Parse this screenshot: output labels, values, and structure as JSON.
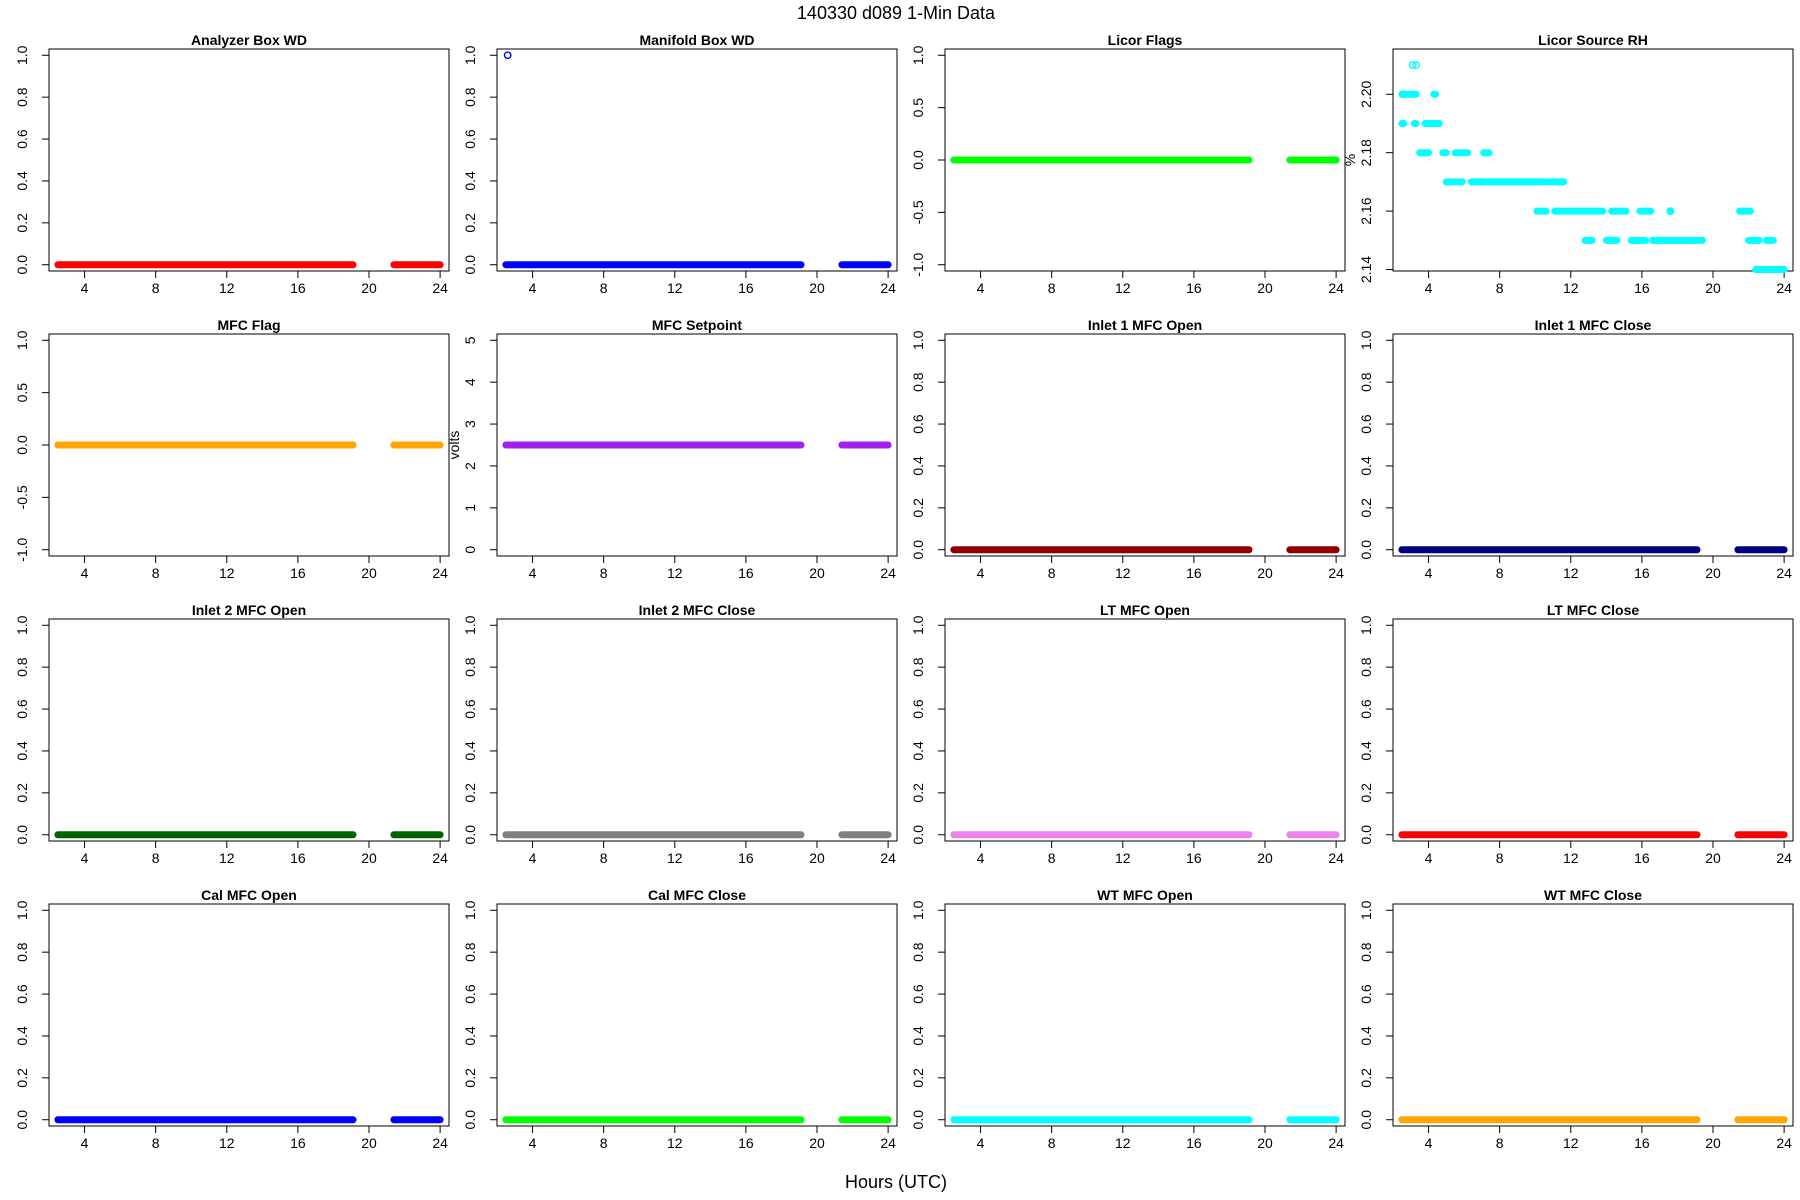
{
  "figure": {
    "title": "140330    d089    1-Min Data",
    "xlabel": "Hours (UTC)"
  },
  "chart_data": [
    {
      "type": "scatter",
      "title": "Analyzer Box WD",
      "ylabel": "",
      "color": "#ff0000",
      "xlim": [
        2,
        24.5
      ],
      "xticks": [
        4,
        8,
        12,
        16,
        20,
        24
      ],
      "ylim": [
        -0.03,
        1.03
      ],
      "yticks": [
        0.0,
        0.2,
        0.4,
        0.6,
        0.8,
        1.0
      ],
      "ytick_labels": [
        "0.0",
        "0.2",
        "0.4",
        "0.6",
        "0.8",
        "1.0"
      ],
      "segments": [
        {
          "x": [
            2.5,
            19.1
          ],
          "y": 0.0
        },
        {
          "x": [
            21.4,
            24.0
          ],
          "y": 0.0
        }
      ],
      "points": []
    },
    {
      "type": "scatter",
      "title": "Manifold Box WD",
      "ylabel": "",
      "color": "#0000ff",
      "xlim": [
        2,
        24.5
      ],
      "xticks": [
        4,
        8,
        12,
        16,
        20,
        24
      ],
      "ylim": [
        -0.03,
        1.03
      ],
      "yticks": [
        0.0,
        0.2,
        0.4,
        0.6,
        0.8,
        1.0
      ],
      "ytick_labels": [
        "0.0",
        "0.2",
        "0.4",
        "0.6",
        "0.8",
        "1.0"
      ],
      "segments": [
        {
          "x": [
            2.5,
            19.1
          ],
          "y": 0.0
        },
        {
          "x": [
            21.4,
            24.0
          ],
          "y": 0.0
        }
      ],
      "points": [
        {
          "x": 2.6,
          "y": 1.0
        }
      ]
    },
    {
      "type": "scatter",
      "title": "Licor Flags",
      "ylabel": "",
      "color": "#00ff00",
      "xlim": [
        2,
        24.5
      ],
      "xticks": [
        4,
        8,
        12,
        16,
        20,
        24
      ],
      "ylim": [
        -1.06,
        1.06
      ],
      "yticks": [
        -1.0,
        -0.5,
        0.0,
        0.5,
        1.0
      ],
      "ytick_labels": [
        "-1.0",
        "-0.5",
        "0.0",
        "0.5",
        "1.0"
      ],
      "segments": [
        {
          "x": [
            2.5,
            19.1
          ],
          "y": 0.0
        },
        {
          "x": [
            21.4,
            24.0
          ],
          "y": 0.0
        }
      ],
      "points": []
    },
    {
      "type": "scatter",
      "title": "Licor Source RH",
      "ylabel": "%",
      "color": "#00ffff",
      "xlim": [
        2,
        24.5
      ],
      "xticks": [
        4,
        8,
        12,
        16,
        20,
        24
      ],
      "ylim": [
        2.1395,
        2.2155
      ],
      "yticks": [
        2.14,
        2.16,
        2.18,
        2.2
      ],
      "ytick_labels": [
        "2.14",
        "2.16",
        "2.18",
        "2.20"
      ],
      "segments": [
        {
          "x": [
            2.5,
            3.3
          ],
          "y": 2.2
        },
        {
          "x": [
            4.3,
            4.4
          ],
          "y": 2.2
        },
        {
          "x": [
            2.5,
            2.6
          ],
          "y": 2.19
        },
        {
          "x": [
            3.2,
            3.3
          ],
          "y": 2.19
        },
        {
          "x": [
            3.8,
            4.6
          ],
          "y": 2.19
        },
        {
          "x": [
            3.5,
            4.0
          ],
          "y": 2.18
        },
        {
          "x": [
            4.8,
            5.0
          ],
          "y": 2.18
        },
        {
          "x": [
            5.5,
            6.2
          ],
          "y": 2.18
        },
        {
          "x": [
            7.1,
            7.4
          ],
          "y": 2.18
        },
        {
          "x": [
            5.0,
            5.9
          ],
          "y": 2.17
        },
        {
          "x": [
            6.4,
            7.2
          ],
          "y": 2.17
        },
        {
          "x": [
            7.4,
            10.7
          ],
          "y": 2.17
        },
        {
          "x": [
            10.9,
            11.6
          ],
          "y": 2.17
        },
        {
          "x": [
            10.1,
            10.6
          ],
          "y": 2.16
        },
        {
          "x": [
            11.1,
            13.8
          ],
          "y": 2.16
        },
        {
          "x": [
            14.3,
            15.1
          ],
          "y": 2.16
        },
        {
          "x": [
            15.9,
            16.5
          ],
          "y": 2.16
        },
        {
          "x": [
            17.6,
            17.6
          ],
          "y": 2.16
        },
        {
          "x": [
            12.8,
            13.2
          ],
          "y": 2.15
        },
        {
          "x": [
            14.0,
            14.6
          ],
          "y": 2.15
        },
        {
          "x": [
            15.4,
            16.2
          ],
          "y": 2.15
        },
        {
          "x": [
            16.6,
            19.4
          ],
          "y": 2.15
        },
        {
          "x": [
            21.5,
            22.1
          ],
          "y": 2.16
        },
        {
          "x": [
            22.0,
            22.6
          ],
          "y": 2.15
        },
        {
          "x": [
            23.0,
            23.4
          ],
          "y": 2.15
        },
        {
          "x": [
            22.4,
            24.0
          ],
          "y": 2.14
        }
      ],
      "points": [
        {
          "x": 2.6,
          "y": 2.2
        },
        {
          "x": 3.1,
          "y": 2.21
        },
        {
          "x": 3.3,
          "y": 2.21
        },
        {
          "x": 17.6,
          "y": 2.16
        }
      ]
    },
    {
      "type": "scatter",
      "title": "MFC Flag",
      "ylabel": "",
      "color": "#ffa500",
      "xlim": [
        2,
        24.5
      ],
      "xticks": [
        4,
        8,
        12,
        16,
        20,
        24
      ],
      "ylim": [
        -1.06,
        1.06
      ],
      "yticks": [
        -1.0,
        -0.5,
        0.0,
        0.5,
        1.0
      ],
      "ytick_labels": [
        "-1.0",
        "-0.5",
        "0.0",
        "0.5",
        "1.0"
      ],
      "segments": [
        {
          "x": [
            2.5,
            19.1
          ],
          "y": 0.0
        },
        {
          "x": [
            21.4,
            24.0
          ],
          "y": 0.0
        }
      ],
      "points": []
    },
    {
      "type": "scatter",
      "title": "MFC Setpoint",
      "ylabel": "volts",
      "color": "#a020f0",
      "xlim": [
        2,
        24.5
      ],
      "xticks": [
        4,
        8,
        12,
        16,
        20,
        24
      ],
      "ylim": [
        -0.15,
        5.15
      ],
      "yticks": [
        0,
        1,
        2,
        3,
        4,
        5
      ],
      "ytick_labels": [
        "0",
        "1",
        "2",
        "3",
        "4",
        "5"
      ],
      "segments": [
        {
          "x": [
            2.5,
            19.1
          ],
          "y": 2.5
        },
        {
          "x": [
            21.4,
            24.0
          ],
          "y": 2.5
        }
      ],
      "points": []
    },
    {
      "type": "scatter",
      "title": "Inlet 1 MFC Open",
      "ylabel": "",
      "color": "#8b0000",
      "xlim": [
        2,
        24.5
      ],
      "xticks": [
        4,
        8,
        12,
        16,
        20,
        24
      ],
      "ylim": [
        -0.03,
        1.03
      ],
      "yticks": [
        0.0,
        0.2,
        0.4,
        0.6,
        0.8,
        1.0
      ],
      "ytick_labels": [
        "0.0",
        "0.2",
        "0.4",
        "0.6",
        "0.8",
        "1.0"
      ],
      "segments": [
        {
          "x": [
            2.5,
            19.1
          ],
          "y": 0.0
        },
        {
          "x": [
            21.4,
            24.0
          ],
          "y": 0.0
        }
      ],
      "points": []
    },
    {
      "type": "scatter",
      "title": "Inlet 1 MFC Close",
      "ylabel": "",
      "color": "#000080",
      "xlim": [
        2,
        24.5
      ],
      "xticks": [
        4,
        8,
        12,
        16,
        20,
        24
      ],
      "ylim": [
        -0.03,
        1.03
      ],
      "yticks": [
        0.0,
        0.2,
        0.4,
        0.6,
        0.8,
        1.0
      ],
      "ytick_labels": [
        "0.0",
        "0.2",
        "0.4",
        "0.6",
        "0.8",
        "1.0"
      ],
      "segments": [
        {
          "x": [
            2.5,
            19.1
          ],
          "y": 0.0
        },
        {
          "x": [
            21.4,
            24.0
          ],
          "y": 0.0
        }
      ],
      "points": []
    },
    {
      "type": "scatter",
      "title": "Inlet 2 MFC Open",
      "ylabel": "",
      "color": "#006400",
      "xlim": [
        2,
        24.5
      ],
      "xticks": [
        4,
        8,
        12,
        16,
        20,
        24
      ],
      "ylim": [
        -0.03,
        1.03
      ],
      "yticks": [
        0.0,
        0.2,
        0.4,
        0.6,
        0.8,
        1.0
      ],
      "ytick_labels": [
        "0.0",
        "0.2",
        "0.4",
        "0.6",
        "0.8",
        "1.0"
      ],
      "segments": [
        {
          "x": [
            2.5,
            19.1
          ],
          "y": 0.0
        },
        {
          "x": [
            21.4,
            24.0
          ],
          "y": 0.0
        }
      ],
      "points": []
    },
    {
      "type": "scatter",
      "title": "Inlet 2 MFC Close",
      "ylabel": "",
      "color": "#808080",
      "xlim": [
        2,
        24.5
      ],
      "xticks": [
        4,
        8,
        12,
        16,
        20,
        24
      ],
      "ylim": [
        -0.03,
        1.03
      ],
      "yticks": [
        0.0,
        0.2,
        0.4,
        0.6,
        0.8,
        1.0
      ],
      "ytick_labels": [
        "0.0",
        "0.2",
        "0.4",
        "0.6",
        "0.8",
        "1.0"
      ],
      "segments": [
        {
          "x": [
            2.5,
            19.1
          ],
          "y": 0.0
        },
        {
          "x": [
            21.4,
            24.0
          ],
          "y": 0.0
        }
      ],
      "points": []
    },
    {
      "type": "scatter",
      "title": "LT MFC Open",
      "ylabel": "",
      "color": "#ee82ee",
      "xlim": [
        2,
        24.5
      ],
      "xticks": [
        4,
        8,
        12,
        16,
        20,
        24
      ],
      "ylim": [
        -0.03,
        1.03
      ],
      "yticks": [
        0.0,
        0.2,
        0.4,
        0.6,
        0.8,
        1.0
      ],
      "ytick_labels": [
        "0.0",
        "0.2",
        "0.4",
        "0.6",
        "0.8",
        "1.0"
      ],
      "segments": [
        {
          "x": [
            2.5,
            19.1
          ],
          "y": 0.0
        },
        {
          "x": [
            21.4,
            24.0
          ],
          "y": 0.0
        }
      ],
      "points": []
    },
    {
      "type": "scatter",
      "title": "LT MFC Close",
      "ylabel": "",
      "color": "#ff0000",
      "xlim": [
        2,
        24.5
      ],
      "xticks": [
        4,
        8,
        12,
        16,
        20,
        24
      ],
      "ylim": [
        -0.03,
        1.03
      ],
      "yticks": [
        0.0,
        0.2,
        0.4,
        0.6,
        0.8,
        1.0
      ],
      "ytick_labels": [
        "0.0",
        "0.2",
        "0.4",
        "0.6",
        "0.8",
        "1.0"
      ],
      "segments": [
        {
          "x": [
            2.5,
            19.1
          ],
          "y": 0.0
        },
        {
          "x": [
            21.4,
            24.0
          ],
          "y": 0.0
        }
      ],
      "points": []
    },
    {
      "type": "scatter",
      "title": "Cal MFC Open",
      "ylabel": "",
      "color": "#0000ff",
      "xlim": [
        2,
        24.5
      ],
      "xticks": [
        4,
        8,
        12,
        16,
        20,
        24
      ],
      "ylim": [
        -0.03,
        1.03
      ],
      "yticks": [
        0.0,
        0.2,
        0.4,
        0.6,
        0.8,
        1.0
      ],
      "ytick_labels": [
        "0.0",
        "0.2",
        "0.4",
        "0.6",
        "0.8",
        "1.0"
      ],
      "segments": [
        {
          "x": [
            2.5,
            19.1
          ],
          "y": 0.0
        },
        {
          "x": [
            21.4,
            24.0
          ],
          "y": 0.0
        }
      ],
      "points": []
    },
    {
      "type": "scatter",
      "title": "Cal MFC Close",
      "ylabel": "",
      "color": "#00ff00",
      "xlim": [
        2,
        24.5
      ],
      "xticks": [
        4,
        8,
        12,
        16,
        20,
        24
      ],
      "ylim": [
        -0.03,
        1.03
      ],
      "yticks": [
        0.0,
        0.2,
        0.4,
        0.6,
        0.8,
        1.0
      ],
      "ytick_labels": [
        "0.0",
        "0.2",
        "0.4",
        "0.6",
        "0.8",
        "1.0"
      ],
      "segments": [
        {
          "x": [
            2.5,
            19.1
          ],
          "y": 0.0
        },
        {
          "x": [
            21.4,
            24.0
          ],
          "y": 0.0
        }
      ],
      "points": []
    },
    {
      "type": "scatter",
      "title": "WT MFC Open",
      "ylabel": "",
      "color": "#00ffff",
      "xlim": [
        2,
        24.5
      ],
      "xticks": [
        4,
        8,
        12,
        16,
        20,
        24
      ],
      "ylim": [
        -0.03,
        1.03
      ],
      "yticks": [
        0.0,
        0.2,
        0.4,
        0.6,
        0.8,
        1.0
      ],
      "ytick_labels": [
        "0.0",
        "0.2",
        "0.4",
        "0.6",
        "0.8",
        "1.0"
      ],
      "segments": [
        {
          "x": [
            2.5,
            19.1
          ],
          "y": 0.0
        },
        {
          "x": [
            21.4,
            24.0
          ],
          "y": 0.0
        }
      ],
      "points": []
    },
    {
      "type": "scatter",
      "title": "WT MFC Close",
      "ylabel": "",
      "color": "#ffa500",
      "xlim": [
        2,
        24.5
      ],
      "xticks": [
        4,
        8,
        12,
        16,
        20,
        24
      ],
      "ylim": [
        -0.03,
        1.03
      ],
      "yticks": [
        0.0,
        0.2,
        0.4,
        0.6,
        0.8,
        1.0
      ],
      "ytick_labels": [
        "0.0",
        "0.2",
        "0.4",
        "0.6",
        "0.8",
        "1.0"
      ],
      "segments": [
        {
          "x": [
            2.5,
            19.1
          ],
          "y": 0.0
        },
        {
          "x": [
            21.4,
            24.0
          ],
          "y": 0.0
        }
      ],
      "points": []
    }
  ]
}
